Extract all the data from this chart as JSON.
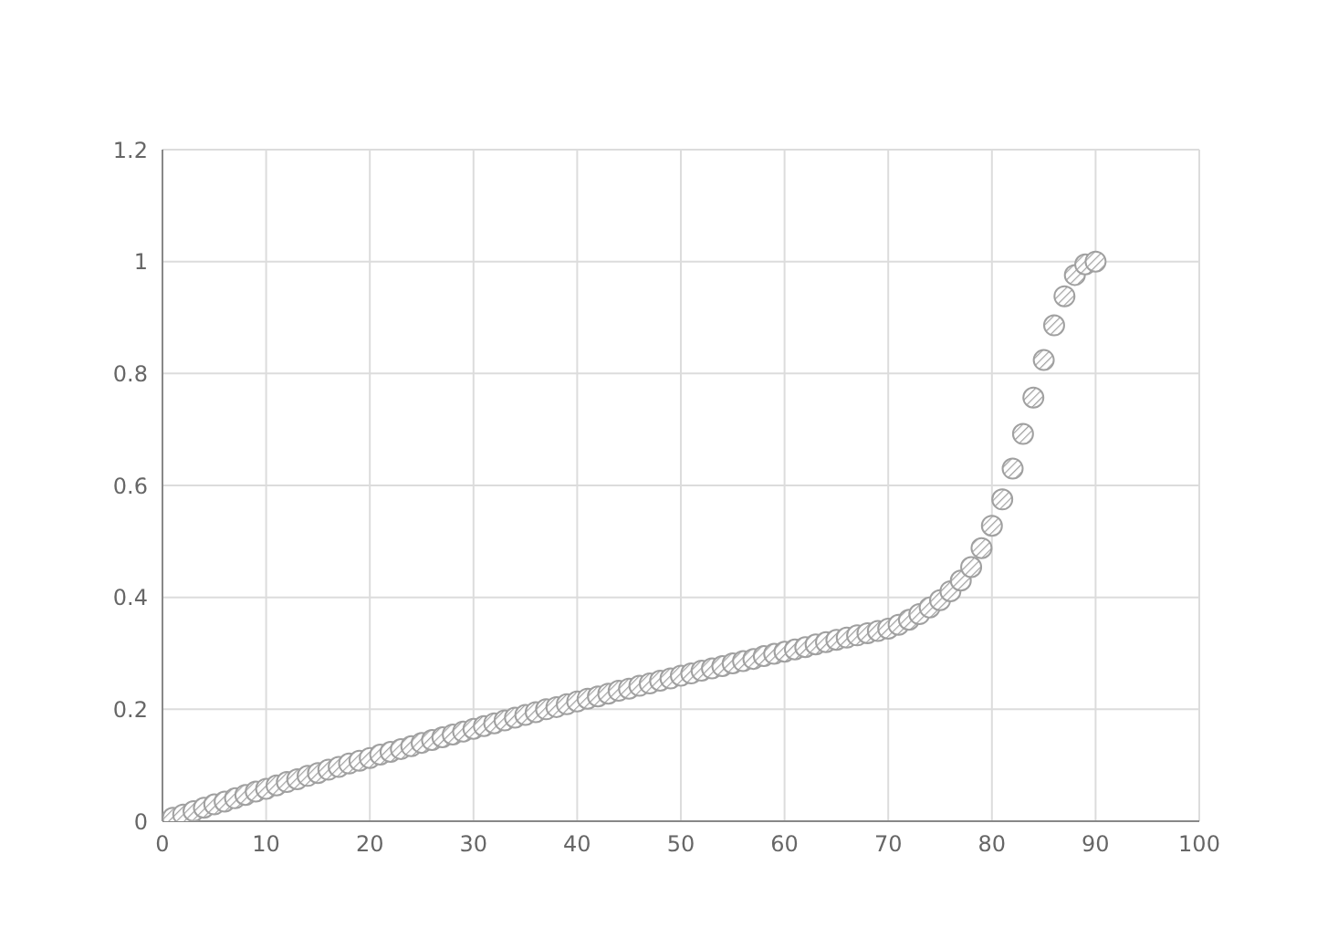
{
  "chart_data": {
    "type": "scatter",
    "x": [
      1,
      2,
      3,
      4,
      5,
      6,
      7,
      8,
      9,
      10,
      11,
      12,
      13,
      14,
      15,
      16,
      17,
      18,
      19,
      20,
      21,
      22,
      23,
      24,
      25,
      26,
      27,
      28,
      29,
      30,
      31,
      32,
      33,
      34,
      35,
      36,
      37,
      38,
      39,
      40,
      41,
      42,
      43,
      44,
      45,
      46,
      47,
      48,
      49,
      50,
      51,
      52,
      53,
      54,
      55,
      56,
      57,
      58,
      59,
      60,
      61,
      62,
      63,
      64,
      65,
      66,
      67,
      68,
      69,
      70,
      71,
      72,
      73,
      74,
      75,
      76,
      77,
      78,
      79,
      80,
      81,
      82,
      83,
      84,
      85,
      86,
      87,
      88,
      89,
      90
    ],
    "values": [
      0.006,
      0.012,
      0.018,
      0.024,
      0.03,
      0.035,
      0.041,
      0.047,
      0.053,
      0.058,
      0.064,
      0.07,
      0.075,
      0.081,
      0.086,
      0.092,
      0.097,
      0.103,
      0.108,
      0.113,
      0.119,
      0.124,
      0.129,
      0.134,
      0.14,
      0.145,
      0.15,
      0.155,
      0.16,
      0.165,
      0.17,
      0.175,
      0.18,
      0.185,
      0.19,
      0.195,
      0.2,
      0.204,
      0.209,
      0.214,
      0.219,
      0.223,
      0.228,
      0.233,
      0.237,
      0.242,
      0.246,
      0.251,
      0.255,
      0.26,
      0.264,
      0.269,
      0.273,
      0.277,
      0.282,
      0.286,
      0.29,
      0.295,
      0.299,
      0.303,
      0.307,
      0.311,
      0.316,
      0.32,
      0.324,
      0.328,
      0.332,
      0.336,
      0.34,
      0.344,
      0.351,
      0.36,
      0.37,
      0.382,
      0.395,
      0.411,
      0.43,
      0.454,
      0.488,
      0.528,
      0.575,
      0.63,
      0.692,
      0.757,
      0.824,
      0.886,
      0.938,
      0.976,
      0.995,
      1.0
    ],
    "color": "#a0a0a0",
    "marker": "circle",
    "grid": true,
    "xlim": [
      0,
      100
    ],
    "xticks": [
      0,
      10,
      20,
      30,
      40,
      50,
      60,
      70,
      80,
      90,
      100
    ],
    "ylim": [
      0,
      1.2
    ],
    "yticks": [
      0,
      0.2,
      0.4,
      0.6,
      0.8,
      1,
      1.2
    ]
  }
}
